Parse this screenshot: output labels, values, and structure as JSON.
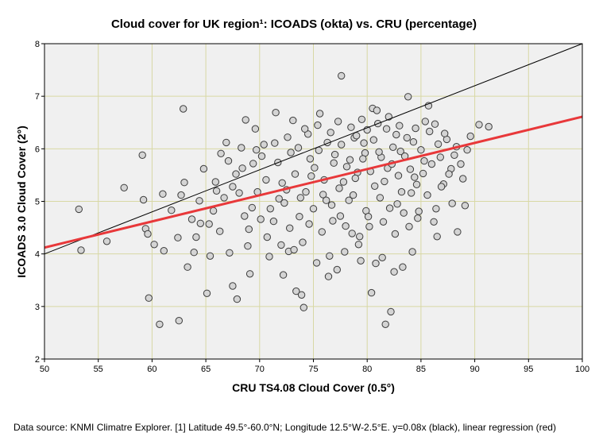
{
  "chart_data": {
    "type": "scatter",
    "title": "Cloud cover for UK region¹: ICOADS (okta) vs. CRU (percentage)",
    "xlabel": "CRU TS4.08 Cloud Cover (0.5°)",
    "ylabel": "ICOADS 3.0 Cloud Cover (2°)",
    "xlim": [
      50,
      100
    ],
    "ylim": [
      2,
      8
    ],
    "x_ticks": [
      "50",
      "55",
      "60",
      "65",
      "70",
      "75",
      "80",
      "85",
      "90",
      "95",
      "100"
    ],
    "y_ticks": [
      "2",
      "3",
      "4",
      "5",
      "6",
      "7",
      "8"
    ],
    "grid": true,
    "reference_line": {
      "name": "y=0.08x",
      "color": "#000000",
      "slope": 0.08,
      "intercept": 0
    },
    "regression_line": {
      "name": "linear regression",
      "color": "#e8383a",
      "x": [
        50,
        100
      ],
      "y": [
        4.12,
        6.61
      ]
    },
    "points": [
      [
        53.2,
        4.85
      ],
      [
        53.4,
        4.07
      ],
      [
        55.8,
        4.24
      ],
      [
        57.4,
        5.26
      ],
      [
        59.1,
        5.88
      ],
      [
        59.2,
        5.03
      ],
      [
        59.4,
        4.48
      ],
      [
        59.6,
        4.38
      ],
      [
        59.7,
        3.16
      ],
      [
        60.2,
        4.18
      ],
      [
        60.7,
        2.66
      ],
      [
        61.0,
        5.14
      ],
      [
        61.1,
        4.06
      ],
      [
        62.4,
        4.31
      ],
      [
        62.5,
        2.73
      ],
      [
        62.9,
        6.76
      ],
      [
        63.0,
        5.36
      ],
      [
        63.3,
        3.75
      ],
      [
        63.9,
        4.03
      ],
      [
        64.5,
        4.58
      ],
      [
        64.8,
        5.62
      ],
      [
        65.1,
        3.25
      ],
      [
        65.4,
        3.96
      ],
      [
        66.0,
        5.2
      ],
      [
        66.4,
        5.91
      ],
      [
        66.9,
        6.12
      ],
      [
        67.2,
        4.02
      ],
      [
        67.5,
        3.39
      ],
      [
        67.9,
        3.14
      ],
      [
        68.3,
        6.02
      ],
      [
        68.7,
        6.55
      ],
      [
        69.1,
        3.62
      ],
      [
        69.4,
        5.72
      ],
      [
        69.6,
        6.38
      ],
      [
        70.4,
        6.08
      ],
      [
        70.9,
        3.95
      ],
      [
        71.5,
        6.69
      ],
      [
        72.2,
        3.6
      ],
      [
        72.7,
        4.05
      ],
      [
        73.1,
        6.54
      ],
      [
        73.4,
        3.29
      ],
      [
        73.9,
        3.22
      ],
      [
        74.1,
        2.98
      ],
      [
        74.5,
        6.28
      ],
      [
        75.6,
        6.67
      ],
      [
        77.6,
        7.39
      ],
      [
        77.9,
        4.04
      ],
      [
        78.8,
        6.21
      ],
      [
        79.7,
        6.11
      ],
      [
        80.4,
        3.26
      ],
      [
        80.5,
        6.77
      ],
      [
        80.9,
        6.73
      ],
      [
        81.7,
        2.66
      ],
      [
        82.2,
        2.9
      ],
      [
        82.7,
        6.27
      ],
      [
        83.3,
        3.75
      ],
      [
        83.8,
        6.99
      ],
      [
        84.2,
        4.04
      ],
      [
        85.7,
        6.82
      ],
      [
        86.4,
        4.86
      ],
      [
        86.5,
        4.33
      ],
      [
        88.3,
        6.04
      ],
      [
        88.4,
        4.42
      ],
      [
        88.9,
        5.43
      ],
      [
        89.1,
        4.92
      ],
      [
        89.6,
        6.24
      ],
      [
        90.4,
        6.46
      ],
      [
        91.3,
        6.42
      ],
      [
        66.3,
        4.43
      ],
      [
        68.9,
        4.15
      ],
      [
        70.1,
        4.66
      ],
      [
        71.3,
        4.62
      ],
      [
        72.8,
        4.49
      ],
      [
        74.0,
        4.22
      ],
      [
        75.3,
        3.83
      ],
      [
        76.4,
        3.57
      ],
      [
        77.2,
        3.7
      ],
      [
        78.6,
        4.39
      ],
      [
        79.4,
        3.87
      ],
      [
        80.2,
        4.52
      ],
      [
        81.4,
        3.93
      ],
      [
        82.6,
        4.38
      ],
      [
        83.9,
        4.52
      ],
      [
        84.8,
        4.81
      ],
      [
        85.6,
        5.12
      ],
      [
        86.2,
        4.61
      ],
      [
        87.1,
        5.33
      ],
      [
        87.8,
        5.62
      ],
      [
        63.7,
        4.66
      ],
      [
        64.4,
        5.01
      ],
      [
        65.7,
        4.82
      ],
      [
        66.7,
        5.07
      ],
      [
        67.5,
        5.28
      ],
      [
        68.1,
        5.16
      ],
      [
        69.3,
        4.88
      ],
      [
        70.6,
        5.41
      ],
      [
        71.8,
        5.05
      ],
      [
        72.5,
        5.22
      ],
      [
        73.7,
        4.71
      ],
      [
        74.8,
        5.48
      ],
      [
        75.9,
        5.13
      ],
      [
        76.7,
        4.93
      ],
      [
        77.8,
        5.37
      ],
      [
        78.3,
        5.02
      ],
      [
        79.1,
        5.55
      ],
      [
        80.7,
        5.29
      ],
      [
        81.9,
        5.63
      ],
      [
        83.2,
        5.18
      ],
      [
        84.4,
        5.46
      ],
      [
        85.3,
        5.77
      ],
      [
        70.2,
        5.86
      ],
      [
        71.7,
        5.74
      ],
      [
        72.9,
        5.93
      ],
      [
        73.6,
        6.02
      ],
      [
        74.7,
        5.81
      ],
      [
        75.5,
        5.97
      ],
      [
        76.3,
        6.12
      ],
      [
        77.0,
        5.89
      ],
      [
        77.6,
        6.08
      ],
      [
        78.4,
        5.79
      ],
      [
        79.0,
        6.25
      ],
      [
        79.8,
        5.92
      ],
      [
        80.6,
        6.17
      ],
      [
        81.3,
        5.84
      ],
      [
        81.8,
        6.38
      ],
      [
        82.4,
        6.03
      ],
      [
        83.1,
        5.95
      ],
      [
        83.7,
        6.21
      ],
      [
        84.3,
        6.13
      ],
      [
        85.0,
        5.98
      ],
      [
        85.8,
        6.33
      ],
      [
        86.6,
        6.09
      ],
      [
        87.4,
        6.18
      ],
      [
        88.1,
        5.88
      ],
      [
        72.1,
        5.35
      ],
      [
        73.3,
        5.52
      ],
      [
        74.3,
        5.18
      ],
      [
        75.1,
        5.64
      ],
      [
        76.0,
        5.41
      ],
      [
        76.9,
        5.73
      ],
      [
        77.4,
        5.25
      ],
      [
        78.1,
        5.66
      ],
      [
        78.9,
        5.44
      ],
      [
        79.6,
        5.81
      ],
      [
        80.3,
        5.57
      ],
      [
        81.1,
        5.94
      ],
      [
        81.6,
        5.38
      ],
      [
        82.3,
        5.71
      ],
      [
        82.9,
        5.49
      ],
      [
        83.5,
        5.86
      ],
      [
        84.0,
        5.61
      ],
      [
        84.6,
        5.32
      ],
      [
        85.2,
        5.53
      ],
      [
        86.0,
        5.71
      ],
      [
        86.8,
        5.84
      ],
      [
        87.6,
        5.52
      ],
      [
        67.8,
        5.52
      ],
      [
        68.6,
        4.72
      ],
      [
        69.8,
        5.18
      ],
      [
        71.0,
        4.86
      ],
      [
        72.3,
        4.97
      ],
      [
        73.8,
        5.07
      ],
      [
        75.0,
        4.86
      ],
      [
        76.2,
        5.02
      ],
      [
        77.5,
        4.72
      ],
      [
        78.7,
        5.12
      ],
      [
        79.9,
        4.82
      ],
      [
        81.2,
        5.07
      ],
      [
        82.8,
        4.95
      ],
      [
        84.1,
        5.16
      ],
      [
        74.6,
        4.57
      ],
      [
        75.8,
        4.42
      ],
      [
        76.8,
        4.63
      ],
      [
        78.0,
        4.53
      ],
      [
        79.3,
        4.33
      ],
      [
        80.1,
        4.71
      ],
      [
        81.5,
        4.61
      ],
      [
        82.1,
        4.87
      ],
      [
        83.4,
        4.78
      ],
      [
        61.8,
        4.83
      ],
      [
        62.7,
        5.12
      ],
      [
        64.1,
        4.32
      ],
      [
        65.3,
        4.57
      ],
      [
        69.0,
        4.47
      ],
      [
        70.7,
        4.32
      ],
      [
        72.0,
        4.17
      ],
      [
        73.2,
        4.08
      ],
      [
        76.5,
        3.96
      ],
      [
        79.2,
        4.18
      ],
      [
        80.8,
        3.82
      ],
      [
        82.5,
        3.66
      ],
      [
        84.7,
        4.68
      ],
      [
        86.9,
        5.28
      ],
      [
        87.9,
        4.96
      ],
      [
        88.7,
        5.71
      ],
      [
        89.3,
        5.98
      ],
      [
        65.9,
        5.37
      ],
      [
        67.1,
        5.77
      ],
      [
        68.4,
        5.63
      ],
      [
        69.7,
        5.98
      ],
      [
        71.4,
        6.11
      ],
      [
        72.6,
        6.22
      ],
      [
        74.2,
        6.38
      ],
      [
        75.4,
        6.45
      ],
      [
        76.6,
        6.31
      ],
      [
        77.3,
        6.52
      ],
      [
        78.5,
        6.41
      ],
      [
        79.5,
        6.56
      ],
      [
        80.0,
        6.36
      ],
      [
        81.0,
        6.48
      ],
      [
        82.0,
        6.61
      ],
      [
        83.0,
        6.44
      ],
      [
        84.5,
        6.39
      ],
      [
        85.4,
        6.52
      ],
      [
        86.3,
        6.47
      ],
      [
        87.2,
        6.29
      ]
    ]
  },
  "footnote": "Data source: KNMI Climatre Explorer. [1] Latitude 49.5°-60.0°N; Longitude 12.5°W-2.5°E. y=0.08x (black), linear regression (red)"
}
